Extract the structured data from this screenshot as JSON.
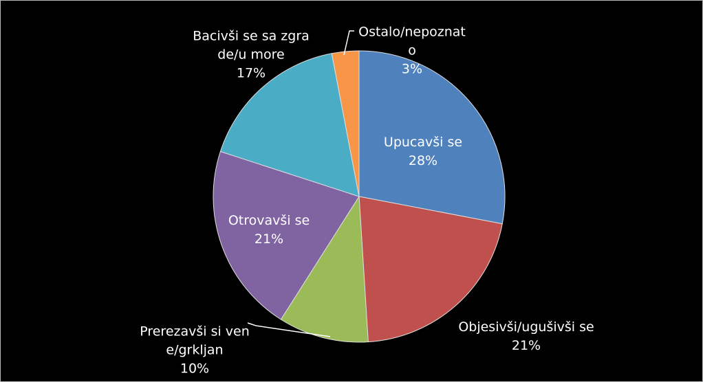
{
  "chart_data": {
    "type": "pie",
    "categories": [
      "Upucavši se",
      "Objesivši/ugušivši se",
      "Prerezavši si vene/grkljan",
      "Otrovavši se",
      "Bacivši se sa zgrade/u more",
      "Ostalo/nepoznato"
    ],
    "values": [
      28,
      21,
      10,
      21,
      17,
      3
    ],
    "value_labels": [
      "28%",
      "21%",
      "10%",
      "21%",
      "17%",
      "3%"
    ],
    "colors": [
      "#4f81bd",
      "#c0504d",
      "#9bbb59",
      "#8064a2",
      "#4bacc6",
      "#f79646"
    ]
  }
}
